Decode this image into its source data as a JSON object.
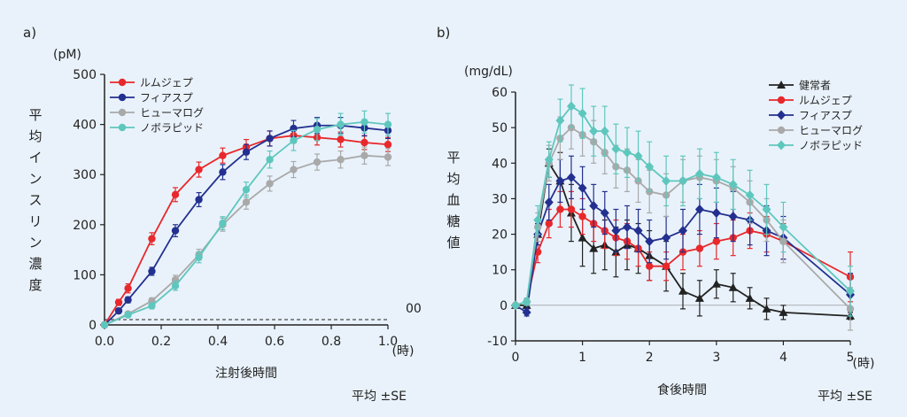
{
  "chart_data": [
    {
      "type": "line",
      "panel_label": "a)",
      "unit_label": "(pM)",
      "ylabel": "平均インスリン濃度",
      "xlabel": "注射後時間",
      "x_unit": "(時)",
      "footnote": "平均 ±SE",
      "baseline_label": "00",
      "xlim": [
        0,
        1.0
      ],
      "ylim": [
        0,
        500
      ],
      "x_ticks": [
        "0.0",
        "0.2",
        "0.4",
        "0.6",
        "0.8",
        "1.0"
      ],
      "y_ticks": [
        "0",
        "100",
        "200",
        "300",
        "400",
        "500"
      ],
      "legend_position": "top-left",
      "series": [
        {
          "name": "ルムジェプ",
          "color": "#e8282b",
          "marker": "circle",
          "x": [
            0,
            0.05,
            0.083,
            0.167,
            0.25,
            0.333,
            0.417,
            0.5,
            0.583,
            0.667,
            0.75,
            0.833,
            0.917,
            1.0
          ],
          "y": [
            0,
            45,
            73,
            172,
            260,
            310,
            338,
            355,
            372,
            378,
            374,
            370,
            364,
            360
          ],
          "err": [
            0,
            6,
            9,
            12,
            14,
            15,
            15,
            15,
            15,
            15,
            15,
            15,
            14,
            14
          ]
        },
        {
          "name": "フィアスプ",
          "color": "#23308f",
          "marker": "circle",
          "x": [
            0,
            0.05,
            0.083,
            0.167,
            0.25,
            0.333,
            0.417,
            0.5,
            0.583,
            0.667,
            0.75,
            0.833,
            0.917,
            1.0
          ],
          "y": [
            0,
            28,
            50,
            107,
            188,
            250,
            305,
            345,
            372,
            392,
            398,
            398,
            393,
            388
          ],
          "err": [
            0,
            4,
            6,
            8,
            12,
            14,
            15,
            15,
            15,
            16,
            16,
            16,
            16,
            16
          ]
        },
        {
          "name": "ヒューマログ",
          "color": "#a9a9a9",
          "marker": "circle",
          "x": [
            0,
            0.083,
            0.167,
            0.25,
            0.333,
            0.417,
            0.5,
            0.583,
            0.667,
            0.75,
            0.833,
            0.917,
            1.0
          ],
          "y": [
            0,
            22,
            48,
            90,
            140,
            200,
            245,
            282,
            310,
            325,
            330,
            338,
            335
          ],
          "err": [
            0,
            4,
            6,
            9,
            11,
            13,
            14,
            15,
            16,
            16,
            17,
            17,
            17
          ]
        },
        {
          "name": "ノボラピッド",
          "color": "#5ec7bd",
          "marker": "circle",
          "x": [
            0,
            0.083,
            0.167,
            0.25,
            0.333,
            0.417,
            0.5,
            0.583,
            0.667,
            0.75,
            0.833,
            0.917,
            1.0
          ],
          "y": [
            0,
            20,
            38,
            78,
            135,
            203,
            270,
            330,
            368,
            390,
            400,
            405,
            400
          ],
          "err": [
            0,
            4,
            6,
            9,
            11,
            13,
            15,
            17,
            20,
            22,
            22,
            22,
            22
          ]
        }
      ]
    },
    {
      "type": "line",
      "panel_label": "b)",
      "unit_label": "(mg/dL)",
      "ylabel": "平均血糖値",
      "xlabel": "食後時間",
      "x_unit": "(時)",
      "footnote": "平均 ±SE",
      "xlim": [
        0,
        5
      ],
      "ylim": [
        -10,
        60
      ],
      "x_ticks": [
        "0",
        "1",
        "2",
        "3",
        "4",
        "5"
      ],
      "y_ticks": [
        "-10",
        "0",
        "10",
        "20",
        "30",
        "40",
        "50",
        "60"
      ],
      "legend_position": "top-right",
      "series": [
        {
          "name": "健常者",
          "color": "#222222",
          "marker": "triangle",
          "x": [
            0,
            0.167,
            0.333,
            0.5,
            0.667,
            0.833,
            1.0,
            1.167,
            1.333,
            1.5,
            1.667,
            1.833,
            2.0,
            2.25,
            2.5,
            2.75,
            3.0,
            3.25,
            3.5,
            3.75,
            4.0,
            5.0
          ],
          "y": [
            0,
            0,
            20,
            40,
            35,
            26,
            19,
            16,
            17,
            15,
            17,
            16,
            14,
            11,
            4,
            2,
            6,
            5,
            2,
            -1,
            -2,
            -3
          ],
          "err": [
            0,
            1,
            3,
            4,
            8,
            8,
            8,
            7,
            7,
            7,
            7,
            7,
            7,
            7,
            5,
            5,
            4,
            4,
            3,
            3,
            2,
            1
          ]
        },
        {
          "name": "ルムジェプ",
          "color": "#e8282b",
          "marker": "circle",
          "x": [
            0,
            0.167,
            0.333,
            0.5,
            0.667,
            0.833,
            1.0,
            1.167,
            1.333,
            1.5,
            1.667,
            1.833,
            2.0,
            2.25,
            2.5,
            2.75,
            3.0,
            3.25,
            3.5,
            3.75,
            4.0,
            5.0
          ],
          "y": [
            0,
            1,
            15,
            23,
            27,
            27,
            25,
            23,
            21,
            19,
            18,
            16,
            11,
            11,
            15,
            16,
            18,
            19,
            21,
            20,
            18,
            8
          ],
          "err": [
            0,
            1,
            3,
            4,
            5,
            5,
            5,
            5,
            5,
            5,
            5,
            5,
            4,
            4,
            5,
            5,
            5,
            5,
            5,
            5,
            5,
            7
          ]
        },
        {
          "name": "フィアスプ",
          "color": "#23308f",
          "marker": "diamond",
          "x": [
            0,
            0.167,
            0.333,
            0.5,
            0.667,
            0.833,
            1.0,
            1.167,
            1.333,
            1.5,
            1.667,
            1.833,
            2.0,
            2.25,
            2.5,
            2.75,
            3.0,
            3.25,
            3.5,
            3.75,
            4.0,
            5.0
          ],
          "y": [
            0,
            -2,
            20,
            29,
            35,
            36,
            33,
            28,
            26,
            21,
            22,
            21,
            18,
            19,
            21,
            27,
            26,
            25,
            24,
            21,
            19,
            3
          ],
          "err": [
            0,
            1,
            3,
            5,
            6,
            6,
            6,
            6,
            6,
            6,
            6,
            6,
            6,
            6,
            6,
            7,
            7,
            7,
            7,
            7,
            6,
            6
          ]
        },
        {
          "name": "ヒューマログ",
          "color": "#a9a9a9",
          "marker": "circle",
          "x": [
            0,
            0.167,
            0.333,
            0.5,
            0.667,
            0.833,
            1.0,
            1.167,
            1.333,
            1.5,
            1.667,
            1.833,
            2.0,
            2.25,
            2.5,
            2.75,
            3.0,
            3.25,
            3.5,
            3.75,
            4.0,
            5.0
          ],
          "y": [
            0,
            1,
            22,
            40,
            47,
            50,
            48,
            46,
            43,
            39,
            38,
            35,
            32,
            31,
            35,
            36,
            35,
            33,
            29,
            24,
            18,
            -1
          ],
          "err": [
            0,
            1,
            4,
            5,
            6,
            6,
            6,
            6,
            6,
            6,
            6,
            6,
            6,
            6,
            6,
            6,
            6,
            6,
            6,
            6,
            6,
            6
          ]
        },
        {
          "name": "ノボラピッド",
          "color": "#5ec7bd",
          "marker": "diamond",
          "x": [
            0,
            0.167,
            0.333,
            0.5,
            0.667,
            0.833,
            1.0,
            1.167,
            1.333,
            1.5,
            1.667,
            1.833,
            2.0,
            2.25,
            2.5,
            2.75,
            3.0,
            3.25,
            3.5,
            3.75,
            4.0,
            5.0
          ],
          "y": [
            0,
            1,
            24,
            41,
            52,
            56,
            54,
            49,
            49,
            44,
            43,
            42,
            39,
            35,
            35,
            37,
            36,
            34,
            31,
            27,
            22,
            4
          ],
          "err": [
            0,
            1,
            4,
            5,
            6,
            6,
            7,
            7,
            7,
            7,
            7,
            7,
            7,
            7,
            7,
            7,
            7,
            7,
            7,
            7,
            7,
            7
          ]
        }
      ]
    }
  ]
}
